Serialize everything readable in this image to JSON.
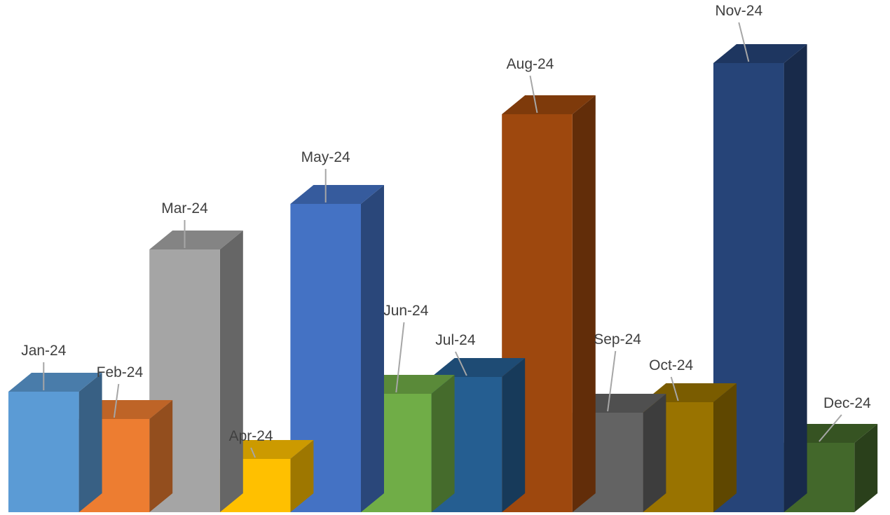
{
  "chart_data": {
    "type": "bar",
    "style": "3d-clustered-column",
    "categories": [
      "Jan-24",
      "Feb-24",
      "Mar-24",
      "Apr-24",
      "May-24",
      "Jun-24",
      "Jul-24",
      "Aug-24",
      "Sep-24",
      "Oct-24",
      "Nov-24",
      "Dec-24"
    ],
    "values": [
      172,
      133,
      375,
      76,
      440,
      169,
      193,
      568,
      142,
      157,
      641,
      99
    ],
    "bar_colors": [
      "#5B9BD5",
      "#ED7D31",
      "#A5A5A5",
      "#FFC000",
      "#4472C4",
      "#70AD47",
      "#255E91",
      "#9E480E",
      "#636363",
      "#997300",
      "#264478",
      "#43682B"
    ],
    "ylim": [
      0,
      700
    ],
    "gridlines": false,
    "legend": "none",
    "data_labels": "category-name-with-leader-lines"
  }
}
